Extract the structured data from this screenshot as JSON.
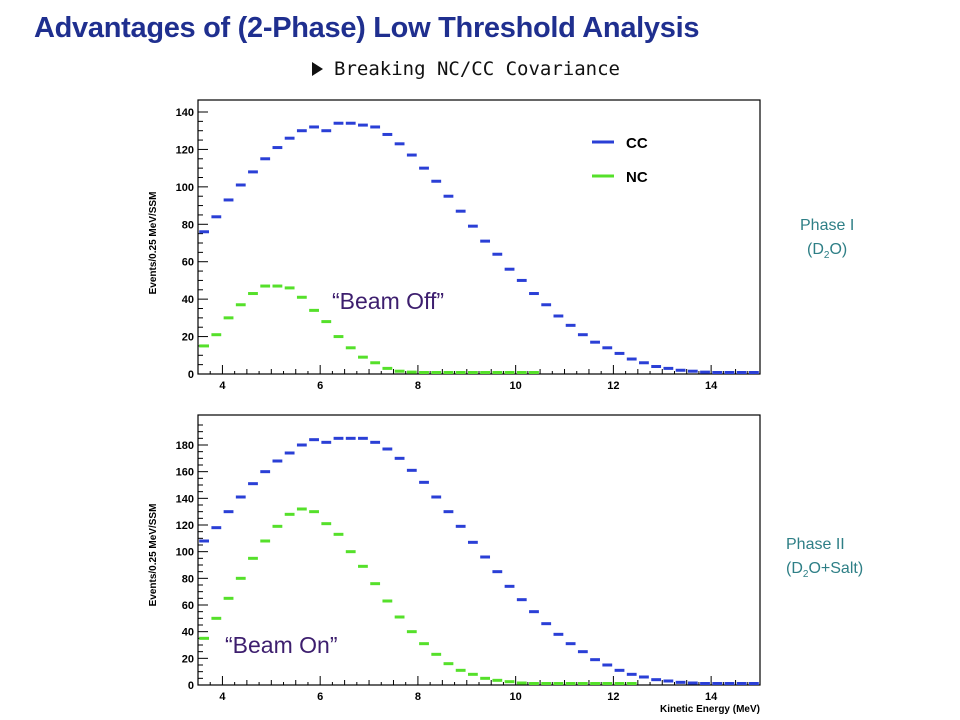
{
  "slide": {
    "title": "Advantages of (2-Phase) Low Threshold Analysis",
    "subtitle": "Breaking NC/CC Covariance",
    "phase1_label": "Phase I",
    "phase1_medium": [
      "(D",
      "2",
      "O)"
    ],
    "phase2_label": "Phase II",
    "phase2_medium": [
      "(D",
      "2",
      "O+Salt)"
    ],
    "beam_off": "“Beam Off”",
    "beam_on": "“Beam On”",
    "colors": {
      "title": "#1f2f8f",
      "phase": "#2e7f86",
      "beam": "#3d1e6e",
      "cc": "#2a3fd6",
      "nc": "#55e02a"
    }
  },
  "chart_data": [
    {
      "type": "scatter",
      "panel": "top",
      "xlabel": "",
      "ylabel": "Events/0.25 MeV/SSM",
      "xlim": [
        3.5,
        15
      ],
      "ylim": [
        0,
        140
      ],
      "xticks": [
        4,
        6,
        8,
        10,
        12,
        14
      ],
      "yticks": [
        0,
        20,
        40,
        60,
        80,
        100,
        120,
        140
      ],
      "legend": {
        "position": "top-right",
        "entries": [
          "CC",
          "NC"
        ]
      },
      "series": [
        {
          "name": "CC",
          "x": [
            3.625,
            3.875,
            4.125,
            4.375,
            4.625,
            4.875,
            5.125,
            5.375,
            5.625,
            5.875,
            6.125,
            6.375,
            6.625,
            6.875,
            7.125,
            7.375,
            7.625,
            7.875,
            8.125,
            8.375,
            8.625,
            8.875,
            9.125,
            9.375,
            9.625,
            9.875,
            10.125,
            10.375,
            10.625,
            10.875,
            11.125,
            11.375,
            11.625,
            11.875,
            12.125,
            12.375,
            12.625,
            12.875,
            13.125,
            13.375,
            13.625,
            13.875,
            14.125,
            14.375,
            14.625,
            14.875
          ],
          "y": [
            76,
            84,
            93,
            101,
            108,
            115,
            121,
            126,
            130,
            132,
            130,
            134,
            134,
            133,
            132,
            128,
            123,
            117,
            110,
            103,
            95,
            87,
            79,
            71,
            64,
            56,
            50,
            43,
            37,
            31,
            26,
            21,
            17,
            14,
            11,
            8,
            6,
            4,
            3,
            2,
            1.5,
            1,
            0.5,
            0.5,
            0.3,
            0.2
          ]
        },
        {
          "name": "NC",
          "x": [
            3.625,
            3.875,
            4.125,
            4.375,
            4.625,
            4.875,
            5.125,
            5.375,
            5.625,
            5.875,
            6.125,
            6.375,
            6.625,
            6.875,
            7.125,
            7.375,
            7.625,
            7.875,
            8.125,
            8.375,
            8.625,
            8.875,
            9.125,
            9.375,
            9.625,
            9.875,
            10.125,
            10.375
          ],
          "y": [
            15,
            21,
            30,
            37,
            43,
            47,
            47,
            46,
            41,
            34,
            28,
            20,
            14,
            9,
            6,
            3,
            1.5,
            1,
            0.5,
            0.3,
            0.2,
            0.1,
            0.1,
            0.1,
            0.1,
            0.1,
            0.1,
            0.1
          ]
        }
      ]
    },
    {
      "type": "scatter",
      "panel": "bottom",
      "xlabel": "Kinetic Energy (MeV)",
      "ylabel": "Events/0.25 MeV/SSM",
      "xlim": [
        3.5,
        15
      ],
      "ylim": [
        0,
        195
      ],
      "xticks": [
        4,
        6,
        8,
        10,
        12,
        14
      ],
      "yticks": [
        0,
        20,
        40,
        60,
        80,
        100,
        120,
        140,
        160,
        180
      ],
      "series": [
        {
          "name": "CC",
          "x": [
            3.625,
            3.875,
            4.125,
            4.375,
            4.625,
            4.875,
            5.125,
            5.375,
            5.625,
            5.875,
            6.125,
            6.375,
            6.625,
            6.875,
            7.125,
            7.375,
            7.625,
            7.875,
            8.125,
            8.375,
            8.625,
            8.875,
            9.125,
            9.375,
            9.625,
            9.875,
            10.125,
            10.375,
            10.625,
            10.875,
            11.125,
            11.375,
            11.625,
            11.875,
            12.125,
            12.375,
            12.625,
            12.875,
            13.125,
            13.375,
            13.625,
            13.875,
            14.125,
            14.375,
            14.625,
            14.875
          ],
          "y": [
            108,
            118,
            130,
            141,
            151,
            160,
            168,
            174,
            180,
            184,
            182,
            185,
            185,
            185,
            182,
            177,
            170,
            161,
            152,
            141,
            130,
            119,
            107,
            96,
            85,
            74,
            64,
            55,
            46,
            38,
            31,
            25,
            19,
            15,
            11,
            8,
            6,
            4,
            3,
            2,
            1.5,
            1,
            0.6,
            0.4,
            0.3,
            0.2
          ]
        },
        {
          "name": "NC",
          "x": [
            3.625,
            3.875,
            4.125,
            4.375,
            4.625,
            4.875,
            5.125,
            5.375,
            5.625,
            5.875,
            6.125,
            6.375,
            6.625,
            6.875,
            7.125,
            7.375,
            7.625,
            7.875,
            8.125,
            8.375,
            8.625,
            8.875,
            9.125,
            9.375,
            9.625,
            9.875,
            10.125,
            10.375,
            10.625,
            10.875,
            11.125,
            11.375,
            11.625,
            11.875,
            12.125,
            12.375
          ],
          "y": [
            35,
            50,
            65,
            80,
            95,
            108,
            119,
            128,
            132,
            130,
            121,
            113,
            100,
            89,
            76,
            63,
            51,
            40,
            31,
            23,
            16,
            11,
            8,
            5,
            3.5,
            2.5,
            1.5,
            1,
            0.5,
            0.3,
            0.2,
            0.1,
            0.1,
            0.1,
            0.1,
            0.1
          ]
        }
      ]
    }
  ]
}
